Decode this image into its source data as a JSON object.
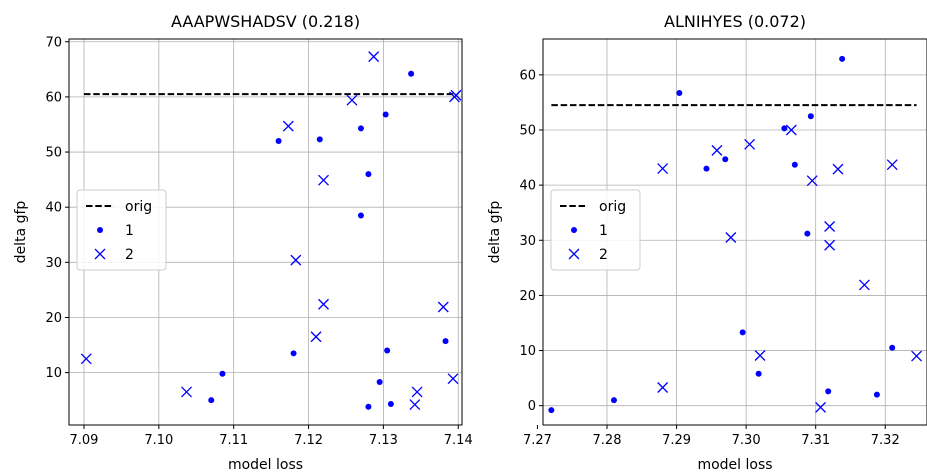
{
  "colors": {
    "marker": "#0000ff",
    "orig_line": "#000000",
    "grid": "#b0b0b0"
  },
  "chart_data": [
    {
      "type": "scatter",
      "title": "AAAPWSHADSV (0.218)",
      "xlabel": "model loss",
      "ylabel": "delta gfp",
      "xlim": [
        7.088,
        7.1405
      ],
      "ylim": [
        0.5,
        70.5
      ],
      "xticks": [
        7.09,
        7.1,
        7.11,
        7.12,
        7.13,
        7.14
      ],
      "xtick_labels": [
        "7.09",
        "7.10",
        "7.11",
        "7.12",
        "7.13",
        "7.14"
      ],
      "yticks": [
        10,
        20,
        30,
        40,
        50,
        60,
        70
      ],
      "ytick_labels": [
        "10",
        "20",
        "30",
        "40",
        "50",
        "60",
        "70"
      ],
      "grid": true,
      "legend_position": "center-left",
      "orig": {
        "label": "orig",
        "y": 60.5,
        "x_range": [
          7.09,
          7.1395
        ]
      },
      "series": [
        {
          "name": "1",
          "marker": "dot",
          "points": [
            [
              7.107,
              5.0
            ],
            [
              7.1085,
              9.8
            ],
            [
              7.116,
              52.0
            ],
            [
              7.118,
              13.5
            ],
            [
              7.1215,
              52.3
            ],
            [
              7.127,
              54.3
            ],
            [
              7.127,
              38.5
            ],
            [
              7.128,
              46.0
            ],
            [
              7.128,
              3.8
            ],
            [
              7.1295,
              8.3
            ],
            [
              7.1303,
              56.8
            ],
            [
              7.1305,
              14.0
            ],
            [
              7.131,
              4.3
            ],
            [
              7.1337,
              64.2
            ],
            [
              7.1383,
              15.7
            ]
          ]
        },
        {
          "name": "2",
          "marker": "x",
          "points": [
            [
              7.0903,
              12.5
            ],
            [
              7.1037,
              6.5
            ],
            [
              7.1173,
              54.7
            ],
            [
              7.1183,
              30.4
            ],
            [
              7.121,
              16.5
            ],
            [
              7.122,
              44.9
            ],
            [
              7.122,
              22.4
            ],
            [
              7.1258,
              59.4
            ],
            [
              7.1287,
              67.3
            ],
            [
              7.1342,
              4.2
            ],
            [
              7.1345,
              6.5
            ],
            [
              7.138,
              21.9
            ],
            [
              7.1393,
              8.9
            ],
            [
              7.1395,
              60.0
            ],
            [
              7.1397,
              60.3
            ]
          ]
        }
      ]
    },
    {
      "type": "scatter",
      "title": "ALNIHYES (0.072)",
      "xlabel": "model loss",
      "ylabel": "delta gfp",
      "xlim": [
        7.2708,
        7.326
      ],
      "ylim": [
        -3.5,
        66.5
      ],
      "xticks": [
        7.27,
        7.28,
        7.29,
        7.3,
        7.31,
        7.32
      ],
      "xtick_labels": [
        "7.27",
        "7.28",
        "7.29",
        "7.30",
        "7.31",
        "7.32"
      ],
      "yticks": [
        0,
        10,
        20,
        30,
        40,
        50,
        60
      ],
      "ytick_labels": [
        "0",
        "10",
        "20",
        "30",
        "40",
        "50",
        "60"
      ],
      "grid": true,
      "legend_position": "center-left",
      "orig": {
        "label": "orig",
        "y": 54.5,
        "x_range": [
          7.272,
          7.3245
        ]
      },
      "series": [
        {
          "name": "1",
          "marker": "dot",
          "points": [
            [
              7.272,
              -0.8
            ],
            [
              7.281,
              1.0
            ],
            [
              7.2904,
              56.7
            ],
            [
              7.2943,
              43.0
            ],
            [
              7.297,
              44.7
            ],
            [
              7.2995,
              13.3
            ],
            [
              7.3018,
              5.8
            ],
            [
              7.3055,
              50.3
            ],
            [
              7.307,
              43.7
            ],
            [
              7.3088,
              31.2
            ],
            [
              7.3093,
              52.5
            ],
            [
              7.3118,
              2.6
            ],
            [
              7.3138,
              62.9
            ],
            [
              7.3188,
              2.0
            ],
            [
              7.321,
              10.5
            ]
          ]
        },
        {
          "name": "2",
          "marker": "x",
          "points": [
            [
              7.288,
              43.0
            ],
            [
              7.288,
              3.3
            ],
            [
              7.2958,
              46.3
            ],
            [
              7.2978,
              30.5
            ],
            [
              7.3005,
              47.4
            ],
            [
              7.302,
              9.1
            ],
            [
              7.3065,
              50.0
            ],
            [
              7.3095,
              40.8
            ],
            [
              7.3107,
              -0.3
            ],
            [
              7.312,
              32.5
            ],
            [
              7.312,
              29.1
            ],
            [
              7.3132,
              42.9
            ],
            [
              7.317,
              21.9
            ],
            [
              7.321,
              43.7
            ],
            [
              7.3245,
              9.0
            ]
          ]
        }
      ]
    }
  ]
}
